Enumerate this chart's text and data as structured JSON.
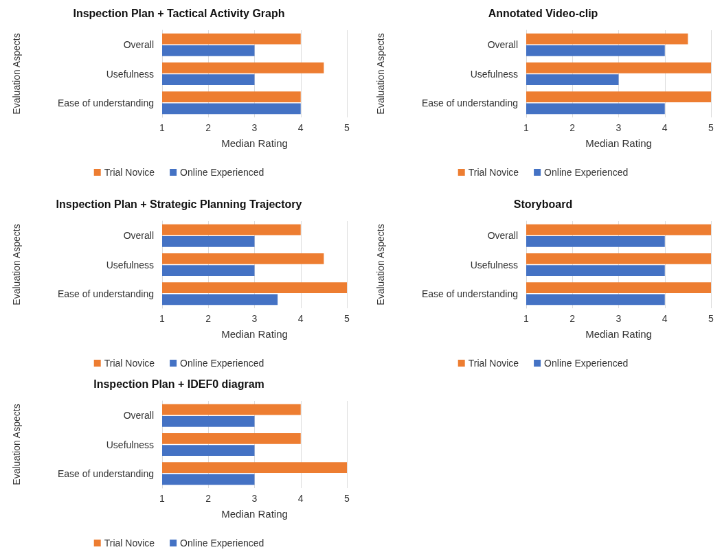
{
  "chart_data": [
    {
      "type": "bar",
      "orientation": "horizontal",
      "title": "Inspection Plan + Tactical Activity Graph",
      "xlabel": "Median Rating",
      "ylabel": "Evaluation Aspects",
      "categories": [
        "Overall",
        "Usefulness",
        "Ease of understanding"
      ],
      "series": [
        {
          "name": "Trial Novice",
          "color": "#ed7d31",
          "values": [
            4,
            4.5,
            4
          ]
        },
        {
          "name": "Online Experienced",
          "color": "#4472c4",
          "values": [
            3,
            3,
            4
          ]
        }
      ],
      "xlim": [
        1,
        5
      ],
      "xticks": [
        1,
        2,
        3,
        4,
        5
      ],
      "grid": "x",
      "legend": "bottom"
    },
    {
      "type": "bar",
      "orientation": "horizontal",
      "title": "Annotated Video-clip",
      "xlabel": "Median Rating",
      "ylabel": "Evaluation Aspects",
      "categories": [
        "Overall",
        "Usefulness",
        "Ease of understanding"
      ],
      "series": [
        {
          "name": "Trial Novice",
          "color": "#ed7d31",
          "values": [
            4.5,
            5,
            5
          ]
        },
        {
          "name": "Online Experienced",
          "color": "#4472c4",
          "values": [
            4,
            3,
            4
          ]
        }
      ],
      "xlim": [
        1,
        5
      ],
      "xticks": [
        1,
        2,
        3,
        4,
        5
      ],
      "grid": "x",
      "legend": "bottom"
    },
    {
      "type": "bar",
      "orientation": "horizontal",
      "title": "Inspection Plan + Strategic Planning Trajectory",
      "xlabel": "Median Rating",
      "ylabel": "Evaluation Aspects",
      "categories": [
        "Overall",
        "Usefulness",
        "Ease of understanding"
      ],
      "series": [
        {
          "name": "Trial Novice",
          "color": "#ed7d31",
          "values": [
            4,
            4.5,
            5
          ]
        },
        {
          "name": "Online Experienced",
          "color": "#4472c4",
          "values": [
            3,
            3,
            3.5
          ]
        }
      ],
      "xlim": [
        1,
        5
      ],
      "xticks": [
        1,
        2,
        3,
        4,
        5
      ],
      "grid": "x",
      "legend": "bottom"
    },
    {
      "type": "bar",
      "orientation": "horizontal",
      "title": "Storyboard",
      "xlabel": "Median Rating",
      "ylabel": "Evaluation Aspects",
      "categories": [
        "Overall",
        "Usefulness",
        "Ease of understanding"
      ],
      "series": [
        {
          "name": "Trial Novice",
          "color": "#ed7d31",
          "values": [
            5,
            5,
            5
          ]
        },
        {
          "name": "Online Experienced",
          "color": "#4472c4",
          "values": [
            4,
            4,
            4
          ]
        }
      ],
      "xlim": [
        1,
        5
      ],
      "xticks": [
        1,
        2,
        3,
        4,
        5
      ],
      "grid": "x",
      "legend": "bottom"
    },
    {
      "type": "bar",
      "orientation": "horizontal",
      "title": "Inspection Plan + IDEF0 diagram",
      "xlabel": "Median Rating",
      "ylabel": "Evaluation Aspects",
      "categories": [
        "Overall",
        "Usefulness",
        "Ease of understanding"
      ],
      "series": [
        {
          "name": "Trial Novice",
          "color": "#ed7d31",
          "values": [
            4,
            4,
            5
          ]
        },
        {
          "name": "Online Experienced",
          "color": "#4472c4",
          "values": [
            3,
            3,
            3
          ]
        }
      ],
      "xlim": [
        1,
        5
      ],
      "xticks": [
        1,
        2,
        3,
        4,
        5
      ],
      "grid": "x",
      "legend": "bottom"
    }
  ]
}
